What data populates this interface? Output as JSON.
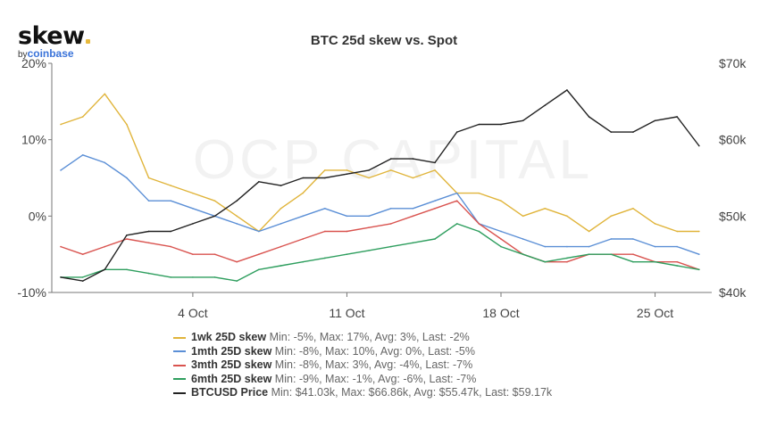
{
  "logo": {
    "brand": "skew",
    "by": "by",
    "parent": "coinbase"
  },
  "watermark": "OCP CAPITAL",
  "chart_data": {
    "type": "line",
    "title": "BTC 25d skew vs. Spot",
    "x": [
      "Sep 28",
      "Sep 29",
      "Sep 30",
      "Oct 1",
      "Oct 2",
      "Oct 3",
      "Oct 4",
      "Oct 5",
      "Oct 6",
      "Oct 7",
      "Oct 8",
      "Oct 9",
      "Oct 10",
      "Oct 11",
      "Oct 12",
      "Oct 13",
      "Oct 14",
      "Oct 15",
      "Oct 16",
      "Oct 17",
      "Oct 18",
      "Oct 19",
      "Oct 20",
      "Oct 21",
      "Oct 22",
      "Oct 23",
      "Oct 24",
      "Oct 25",
      "Oct 26",
      "Oct 27"
    ],
    "x_ticks": [
      "4 Oct",
      "11 Oct",
      "18 Oct",
      "25 Oct"
    ],
    "left_axis": {
      "ticks": [
        "20%",
        "10%",
        "0%",
        "-10%"
      ],
      "range": [
        -10,
        20
      ],
      "unit": "%"
    },
    "right_axis": {
      "ticks": [
        "$70k",
        "$60k",
        "$50k",
        "$40k"
      ],
      "range": [
        40,
        70
      ],
      "unit": "$k"
    },
    "grid": false,
    "legend_position": "bottom",
    "series": [
      {
        "name": "1wk 25D skew",
        "axis": "left",
        "color": "#e0b43a",
        "stats": "Min: -5%, Max: 17%, Avg: 3%, Last: -2%",
        "values": [
          12,
          13,
          16,
          12,
          5,
          4,
          3,
          2,
          0,
          -2,
          1,
          3,
          6,
          6,
          5,
          6,
          5,
          6,
          3,
          3,
          2,
          0,
          1,
          0,
          -2,
          0,
          1,
          -1,
          -2,
          -2
        ]
      },
      {
        "name": "1mth 25D skew",
        "axis": "left",
        "color": "#5b8fd6",
        "stats": "Min: -8%, Max: 10%, Avg: 0%, Last: -5%",
        "values": [
          6,
          8,
          7,
          5,
          2,
          2,
          1,
          0,
          -1,
          -2,
          -1,
          0,
          1,
          0,
          0,
          1,
          1,
          2,
          3,
          -1,
          -2,
          -3,
          -4,
          -4,
          -4,
          -3,
          -3,
          -4,
          -4,
          -5
        ]
      },
      {
        "name": "3mth 25D skew",
        "axis": "left",
        "color": "#d9534f",
        "stats": "Min: -8%, Max: 3%, Avg: -4%, Last: -7%",
        "values": [
          -4,
          -5,
          -4,
          -3,
          -3.5,
          -4,
          -5,
          -5,
          -6,
          -5,
          -4,
          -3,
          -2,
          -2,
          -1.5,
          -1,
          0,
          1,
          2,
          -1,
          -3,
          -5,
          -6,
          -6,
          -5,
          -5,
          -5,
          -6,
          -6,
          -7
        ]
      },
      {
        "name": "6mth 25D skew",
        "axis": "left",
        "color": "#2e9e5e",
        "stats": "Min: -9%, Max: -1%, Avg: -6%, Last: -7%",
        "values": [
          -8,
          -8,
          -7,
          -7,
          -7.5,
          -8,
          -8,
          -8,
          -8.5,
          -7,
          -6.5,
          -6,
          -5.5,
          -5,
          -4.5,
          -4,
          -3.5,
          -3,
          -1,
          -2,
          -4,
          -5,
          -6,
          -5.5,
          -5,
          -5,
          -6,
          -6,
          -6.5,
          -7
        ]
      },
      {
        "name": "BTCUSD Price",
        "axis": "right",
        "color": "#222222",
        "stats": "Min: $41.03k, Max: $66.86k, Avg: $55.47k, Last: $59.17k",
        "values": [
          42,
          41.5,
          43,
          47.5,
          48,
          48,
          49,
          50,
          52,
          54.5,
          54,
          55,
          55,
          55.5,
          56,
          57.5,
          57.5,
          57,
          61,
          62,
          62,
          62.5,
          64.5,
          66.5,
          63,
          61,
          61,
          62.5,
          63,
          59.2
        ]
      }
    ]
  }
}
